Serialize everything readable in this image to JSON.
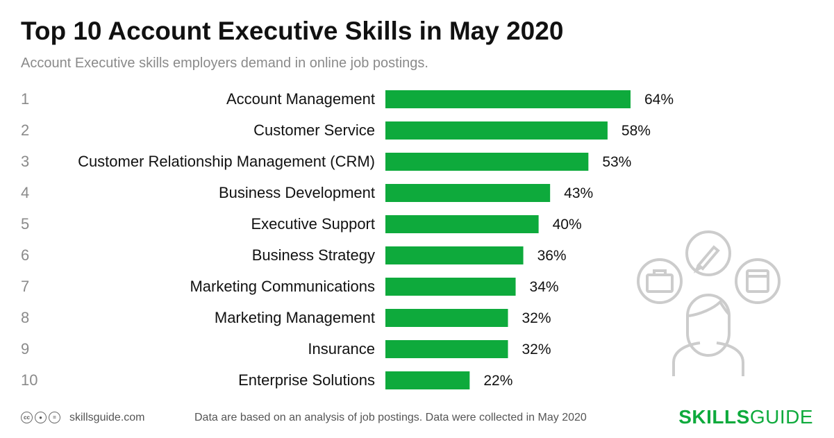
{
  "header": {
    "title": "Top 10 Account Executive Skills in May 2020",
    "subtitle": "Account Executive skills employers demand in online job postings."
  },
  "chart_data": {
    "type": "bar",
    "orientation": "horizontal",
    "title": "Top 10 Account Executive Skills in May 2020",
    "subtitle": "Account Executive skills employers demand in online job postings.",
    "ranks": [
      "1",
      "2",
      "3",
      "4",
      "5",
      "6",
      "7",
      "8",
      "9",
      "10"
    ],
    "categories": [
      "Account Management",
      "Customer Service",
      "Customer Relationship Management (CRM)",
      "Business Development",
      "Executive Support",
      "Business Strategy",
      "Marketing Communications",
      "Marketing Management",
      "Insurance",
      "Enterprise Solutions"
    ],
    "values": [
      64,
      58,
      53,
      43,
      40,
      36,
      34,
      32,
      32,
      22
    ],
    "value_labels": [
      "64%",
      "58%",
      "53%",
      "43%",
      "40%",
      "36%",
      "34%",
      "32%",
      "32%",
      "22%"
    ],
    "unit": "%",
    "bar_color": "#0eaa3c",
    "grid": false,
    "legend": "none"
  },
  "footer": {
    "license_icons": [
      "cc-icon",
      "by-icon",
      "equals-icon"
    ],
    "site": "skillsguide.com",
    "note": "Data are based on an analysis of job postings. Data were collected in May 2020",
    "brand_bold": "SKILLS",
    "brand_regular": "GUIDE",
    "brand_color": "#0eaa3c"
  }
}
